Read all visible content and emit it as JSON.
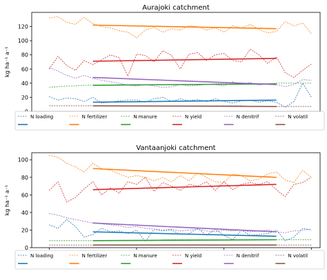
{
  "chart_data": [
    {
      "type": "line",
      "title": "Aurajoki catchment",
      "ylabel": "kg ha⁻¹ a⁻¹",
      "xlabel": "",
      "xlim": [
        1988,
        2021
      ],
      "ylim": [
        0,
        140
      ],
      "xticks": [
        1990,
        2000,
        2010,
        2020
      ],
      "yticks": [
        0,
        20,
        40,
        60,
        80,
        100,
        120
      ],
      "legend": "below",
      "series": [
        {
          "name": "N loading",
          "color": "#1f77b4",
          "x": [
            1990,
            1991,
            1992,
            1993,
            1994,
            1995,
            1996,
            1997,
            1998,
            1999,
            2000,
            2001,
            2002,
            2003,
            2004,
            2005,
            2006,
            2007,
            2008,
            2009,
            2010,
            2011,
            2012,
            2013,
            2014,
            2015,
            2016,
            2017,
            2018,
            2019,
            2020
          ],
          "annual": [
            21,
            16,
            19,
            18,
            14,
            20,
            12,
            13,
            15,
            16,
            16,
            13,
            18,
            20,
            14,
            18,
            15,
            17,
            14,
            18,
            14,
            12,
            15,
            16,
            13,
            15,
            13,
            6,
            14,
            40,
            20
          ],
          "trend_x": [
            1995,
            2016
          ],
          "trend": [
            13,
            16
          ]
        },
        {
          "name": "N fertilizer",
          "color": "#ff7f0e",
          "x": [
            1990,
            1991,
            1992,
            1993,
            1994,
            1995,
            1996,
            1997,
            1998,
            1999,
            2000,
            2001,
            2002,
            2003,
            2004,
            2005,
            2006,
            2007,
            2008,
            2009,
            2010,
            2011,
            2012,
            2013,
            2014,
            2015,
            2016,
            2017,
            2018,
            2019,
            2020
          ],
          "annual": [
            132,
            134,
            126,
            123,
            133,
            124,
            120,
            118,
            114,
            112,
            104,
            115,
            119,
            112,
            117,
            115,
            121,
            120,
            115,
            118,
            112,
            121,
            118,
            123,
            116,
            111,
            113,
            127,
            121,
            125,
            110
          ],
          "trend_x": [
            1995,
            2016
          ],
          "trend": [
            122,
            117
          ]
        },
        {
          "name": "N manure",
          "color": "#2ca02c",
          "x": [
            1990,
            1991,
            1992,
            1993,
            1994,
            1995,
            1996,
            1997,
            1998,
            1999,
            2000,
            2001,
            2002,
            2003,
            2004,
            2005,
            2006,
            2007,
            2008,
            2009,
            2010,
            2011,
            2012,
            2013,
            2014,
            2015,
            2016,
            2017,
            2018,
            2019,
            2020
          ],
          "annual": [
            34,
            35,
            36,
            36,
            37,
            37,
            37,
            37,
            38,
            38,
            38,
            38,
            38,
            38,
            38,
            38,
            38,
            38,
            38,
            39,
            39,
            39,
            39,
            39,
            39,
            39,
            40,
            40,
            40,
            40,
            40
          ],
          "trend_x": [
            1995,
            2016
          ],
          "trend": [
            37,
            39
          ]
        },
        {
          "name": "N yield",
          "color": "#d62728",
          "x": [
            1990,
            1991,
            1992,
            1993,
            1994,
            1995,
            1996,
            1997,
            1998,
            1999,
            2000,
            2001,
            2002,
            2003,
            2004,
            2005,
            2006,
            2007,
            2008,
            2009,
            2010,
            2011,
            2012,
            2013,
            2014,
            2015,
            2016,
            2017,
            2018,
            2019,
            2020
          ],
          "annual": [
            60,
            78,
            65,
            58,
            72,
            66,
            73,
            80,
            76,
            50,
            81,
            79,
            70,
            86,
            79,
            60,
            81,
            83,
            72,
            80,
            82,
            72,
            70,
            88,
            80,
            68,
            77,
            55,
            48,
            58,
            67
          ],
          "trend_x": [
            1995,
            2016
          ],
          "trend": [
            71,
            75
          ]
        },
        {
          "name": "N denitrif",
          "color": "#9467bd",
          "x": [
            1990,
            1991,
            1992,
            1993,
            1994,
            1995,
            1996,
            1997,
            1998,
            1999,
            2000,
            2001,
            2002,
            2003,
            2004,
            2005,
            2006,
            2007,
            2008,
            2009,
            2010,
            2011,
            2012,
            2013,
            2014,
            2015,
            2016,
            2017,
            2018,
            2019,
            2020
          ],
          "annual": [
            62,
            57,
            51,
            47,
            51,
            47,
            44,
            42,
            40,
            37,
            36,
            38,
            36,
            34,
            35,
            38,
            36,
            37,
            38,
            38,
            36,
            42,
            38,
            41,
            37,
            39,
            38,
            35,
            38,
            45,
            44
          ],
          "trend_x": [
            1995,
            2016
          ],
          "trend": [
            48,
            38
          ]
        },
        {
          "name": "N volatil",
          "color": "#8c564b",
          "x": [
            1990,
            1991,
            1992,
            1993,
            1994,
            1995,
            1996,
            1997,
            1998,
            1999,
            2000,
            2001,
            2002,
            2003,
            2004,
            2005,
            2006,
            2007,
            2008,
            2009,
            2010,
            2011,
            2012,
            2013,
            2014,
            2015,
            2016,
            2017,
            2018,
            2019,
            2020
          ],
          "annual": [
            8,
            8,
            8,
            8,
            8,
            8,
            8,
            8,
            8,
            8,
            8,
            8,
            8,
            8,
            8,
            8,
            8,
            8,
            8,
            8,
            8,
            8,
            8,
            7,
            7,
            7,
            7,
            7,
            7,
            7,
            7
          ],
          "trend_x": [
            1995,
            2016
          ],
          "trend": [
            8,
            7
          ]
        }
      ]
    },
    {
      "type": "line",
      "title": "Vantaanjoki catchment",
      "ylabel": "kg ha⁻¹ a⁻¹",
      "xlabel": "",
      "xlim": [
        1988,
        2021
      ],
      "ylim": [
        0,
        108
      ],
      "xticks": [
        1990,
        2000,
        2010,
        2020
      ],
      "yticks": [
        0,
        20,
        40,
        60,
        80,
        100
      ],
      "legend": "below",
      "series": [
        {
          "name": "N loading",
          "color": "#1f77b4",
          "x": [
            1990,
            1991,
            1992,
            1993,
            1994,
            1995,
            1996,
            1997,
            1998,
            1999,
            2000,
            2001,
            2002,
            2003,
            2004,
            2005,
            2006,
            2007,
            2008,
            2009,
            2010,
            2011,
            2012,
            2013,
            2014,
            2015,
            2016,
            2017,
            2018,
            2019,
            2020
          ],
          "annual": [
            26,
            22,
            32,
            24,
            12,
            15,
            22,
            18,
            19,
            16,
            20,
            7,
            21,
            19,
            20,
            15,
            16,
            22,
            14,
            21,
            14,
            9,
            20,
            14,
            15,
            16,
            20,
            8,
            12,
            22,
            20
          ],
          "trend_x": [
            1995,
            2016
          ],
          "trend": [
            18,
            13
          ]
        },
        {
          "name": "N fertilizer",
          "color": "#ff7f0e",
          "x": [
            1990,
            1991,
            1992,
            1993,
            1994,
            1995,
            1996,
            1997,
            1998,
            1999,
            2000,
            2001,
            2002,
            2003,
            2004,
            2005,
            2006,
            2007,
            2008,
            2009,
            2010,
            2011,
            2012,
            2013,
            2014,
            2015,
            2016,
            2017,
            2018,
            2019,
            2020
          ],
          "annual": [
            105,
            103,
            96,
            92,
            86,
            96,
            90,
            88,
            84,
            80,
            82,
            80,
            76,
            80,
            75,
            82,
            76,
            85,
            80,
            75,
            74,
            84,
            82,
            76,
            78,
            84,
            86,
            77,
            74,
            88,
            80
          ],
          "trend_x": [
            1995,
            2016
          ],
          "trend": [
            90,
            80
          ]
        },
        {
          "name": "N manure",
          "color": "#2ca02c",
          "x": [
            1990,
            1991,
            1992,
            1993,
            1994,
            1995,
            1996,
            1997,
            1998,
            1999,
            2000,
            2001,
            2002,
            2003,
            2004,
            2005,
            2006,
            2007,
            2008,
            2009,
            2010,
            2011,
            2012,
            2013,
            2014,
            2015,
            2016,
            2017,
            2018,
            2019,
            2020
          ],
          "annual": [
            8,
            8,
            8,
            8,
            8,
            8,
            8,
            8,
            8,
            8,
            8,
            8,
            8,
            9,
            9,
            9,
            9,
            9,
            9,
            9,
            9,
            9,
            9,
            9,
            9,
            9,
            9,
            9,
            9,
            9,
            9
          ],
          "trend_x": [
            1995,
            2016
          ],
          "trend": [
            8,
            9
          ]
        },
        {
          "name": "N yield",
          "color": "#d62728",
          "x": [
            1990,
            1991,
            1992,
            1993,
            1994,
            1995,
            1996,
            1997,
            1998,
            1999,
            2000,
            2001,
            2002,
            2003,
            2004,
            2005,
            2006,
            2007,
            2008,
            2009,
            2010,
            2011,
            2012,
            2013,
            2014,
            2015,
            2016,
            2017,
            2018,
            2019,
            2020
          ],
          "annual": [
            65,
            75,
            52,
            57,
            67,
            75,
            60,
            68,
            62,
            75,
            72,
            80,
            64,
            74,
            70,
            65,
            72,
            70,
            75,
            65,
            75,
            66,
            72,
            74,
            72,
            75,
            66,
            58,
            72,
            74,
            80
          ],
          "trend_x": [
            1995,
            2016
          ],
          "trend": [
            66,
            72
          ]
        },
        {
          "name": "N denitrif",
          "color": "#9467bd",
          "x": [
            1990,
            1991,
            1992,
            1993,
            1994,
            1995,
            1996,
            1997,
            1998,
            1999,
            2000,
            2001,
            2002,
            2003,
            2004,
            2005,
            2006,
            2007,
            2008,
            2009,
            2010,
            2011,
            2012,
            2013,
            2014,
            2015,
            2016,
            2017,
            2018,
            2019,
            2020
          ],
          "annual": [
            39,
            37,
            34,
            32,
            30,
            28,
            27,
            26,
            25,
            23,
            24,
            22,
            21,
            20,
            21,
            19,
            20,
            21,
            19,
            18,
            20,
            19,
            20,
            18,
            19,
            20,
            18,
            17,
            19,
            20,
            21
          ],
          "trend_x": [
            1995,
            2016
          ],
          "trend": [
            28,
            18
          ]
        },
        {
          "name": "N volatil",
          "color": "#8c564b",
          "x": [
            1990,
            1991,
            1992,
            1993,
            1994,
            1995,
            1996,
            1997,
            1998,
            1999,
            2000,
            2001,
            2002,
            2003,
            2004,
            2005,
            2006,
            2007,
            2008,
            2009,
            2010,
            2011,
            2012,
            2013,
            2014,
            2015,
            2016,
            2017,
            2018,
            2019,
            2020
          ],
          "annual": [
            3,
            3,
            3,
            3,
            3,
            3,
            3,
            3,
            3,
            3,
            3,
            3,
            3,
            3,
            3,
            3,
            3,
            3,
            3,
            3,
            3,
            3,
            3,
            3,
            3,
            3,
            3,
            3,
            3,
            3,
            3
          ],
          "trend_x": [
            1995,
            2016
          ],
          "trend": [
            3,
            3
          ]
        }
      ]
    }
  ]
}
